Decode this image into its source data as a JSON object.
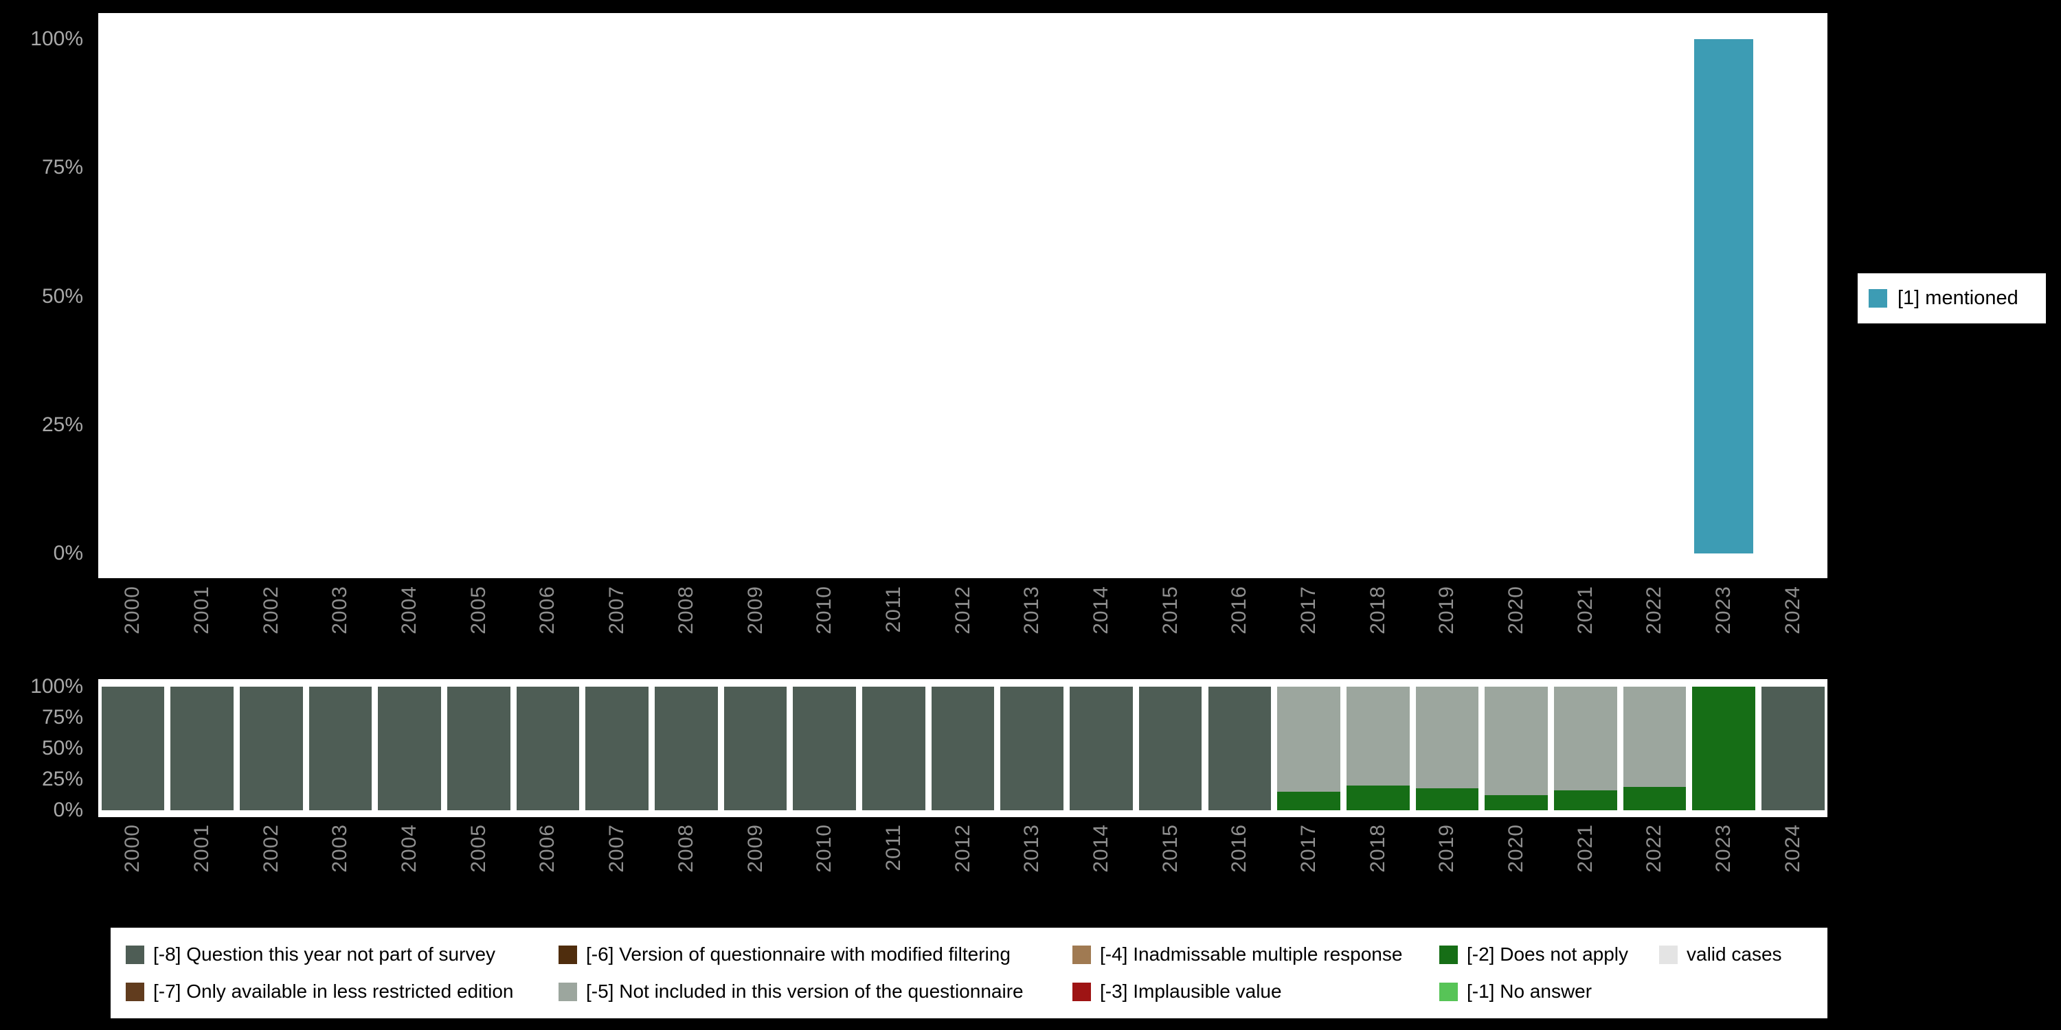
{
  "colors": {
    "background": "#000000",
    "panel": "#ffffff",
    "y_axis_text": "#a9a9a9",
    "x_axis_text": "#8f8f8f",
    "mentioned": "#3d9cb4",
    "missing_8": "#4e5d55",
    "missing_7": "#613c1e",
    "missing_6": "#4f2d0d",
    "missing_5": "#9ca69e",
    "missing_4": "#a07a52",
    "missing_3": "#9e1414",
    "missing_2": "#166e16",
    "missing_1": "#57c457",
    "valid_cases": "#e4e4e4"
  },
  "side_legend": {
    "label": "[1] mentioned",
    "color": "#3d9cb4"
  },
  "missing_legend": {
    "rows": [
      [
        {
          "label": "[-8] Question this year not part of survey",
          "color": "#4e5d55"
        },
        {
          "label": "[-6] Version of questionnaire with modified filtering",
          "color": "#4f2d0d"
        },
        {
          "label": "[-4] Inadmissable multiple response",
          "color": "#a07a52"
        },
        {
          "label": "[-2] Does not apply",
          "color": "#166e16"
        },
        {
          "label": "valid cases",
          "color": "#e4e4e4"
        }
      ],
      [
        {
          "label": "[-7] Only available in less restricted edition",
          "color": "#613c1e"
        },
        {
          "label": "[-5] Not included in this version of the questionnaire",
          "color": "#9ca69e"
        },
        {
          "label": "[-3] Implausible value",
          "color": "#9e1414"
        },
        {
          "label": "[-1] No answer",
          "color": "#57c457"
        }
      ]
    ]
  },
  "chart_data": [
    {
      "type": "bar",
      "title": "",
      "xlabel": "",
      "ylabel": "",
      "ylim": [
        0,
        100
      ],
      "grid": false,
      "legend_position": "right",
      "y_tick_labels": [
        "100%",
        "75%",
        "50%",
        "25%",
        "0%"
      ],
      "categories": [
        "2000",
        "2001",
        "2002",
        "2003",
        "2004",
        "2005",
        "2006",
        "2007",
        "2008",
        "2009",
        "2010",
        "2011",
        "2012",
        "2013",
        "2014",
        "2015",
        "2016",
        "2017",
        "2018",
        "2019",
        "2020",
        "2021",
        "2022",
        "2023",
        "2024"
      ],
      "series": [
        {
          "name": "[1] mentioned",
          "color": "#3d9cb4",
          "values": [
            0,
            0,
            0,
            0,
            0,
            0,
            0,
            0,
            0,
            0,
            0,
            0,
            0,
            0,
            0,
            0,
            0,
            0,
            0,
            0,
            0,
            0,
            0,
            100,
            0
          ]
        }
      ]
    },
    {
      "type": "stacked-bar",
      "title": "",
      "xlabel": "",
      "ylabel": "",
      "ylim": [
        0,
        100
      ],
      "grid": false,
      "legend_position": "bottom",
      "y_tick_labels": [
        "100%",
        "75%",
        "50%",
        "25%",
        "0%"
      ],
      "categories": [
        "2000",
        "2001",
        "2002",
        "2003",
        "2004",
        "2005",
        "2006",
        "2007",
        "2008",
        "2009",
        "2010",
        "2011",
        "2012",
        "2013",
        "2014",
        "2015",
        "2016",
        "2017",
        "2018",
        "2019",
        "2020",
        "2021",
        "2022",
        "2023",
        "2024"
      ],
      "series": [
        {
          "name": "[-2] Does not apply",
          "color": "#166e16",
          "values": [
            0,
            0,
            0,
            0,
            0,
            0,
            0,
            0,
            0,
            0,
            0,
            0,
            0,
            0,
            0,
            0,
            0,
            15,
            20,
            18,
            12,
            16,
            19,
            100,
            0
          ]
        },
        {
          "name": "[-5] Not included in this version of the questionnaire",
          "color": "#9ca69e",
          "values": [
            0,
            0,
            0,
            0,
            0,
            0,
            0,
            0,
            0,
            0,
            0,
            0,
            0,
            0,
            0,
            0,
            0,
            85,
            80,
            82,
            88,
            84,
            81,
            0,
            0
          ]
        },
        {
          "name": "[-8] Question this year not part of survey",
          "color": "#4e5d55",
          "values": [
            100,
            100,
            100,
            100,
            100,
            100,
            100,
            100,
            100,
            100,
            100,
            100,
            100,
            100,
            100,
            100,
            100,
            0,
            0,
            0,
            0,
            0,
            0,
            0,
            100
          ]
        }
      ]
    }
  ]
}
